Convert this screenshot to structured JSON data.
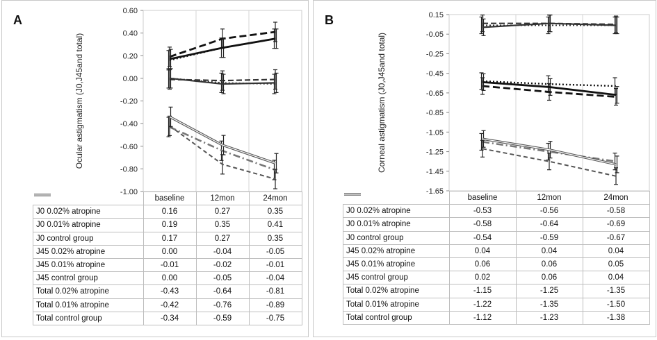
{
  "chart_data": [
    {
      "panel": "A",
      "type": "line",
      "ylabel": "Ocular astigmatism (J0,J45and total)",
      "categories": [
        "baseline",
        "12mon",
        "24mon"
      ],
      "ylim": [
        -1.0,
        0.6
      ],
      "yticks": [
        "0.60",
        "0.40",
        "0.20",
        "0.00",
        "-0.20",
        "-0.40",
        "-0.60",
        "-0.80",
        "-1.00"
      ],
      "yticks_values": [
        0.6,
        0.4,
        0.2,
        0.0,
        -0.2,
        -0.4,
        -0.6,
        -0.8,
        -1.0
      ],
      "series": [
        {
          "name": "J0 0.02% atropine",
          "style": "dotted-black",
          "values": [
            0.16,
            0.27,
            0.35
          ],
          "labels": [
            "0.16",
            "0.27",
            "0.35"
          ]
        },
        {
          "name": "J0 0.01% atropine",
          "style": "dashed-black",
          "values": [
            0.19,
            0.35,
            0.41
          ],
          "labels": [
            "0.19",
            "0.35",
            "0.41"
          ]
        },
        {
          "name": "J0 control group",
          "style": "solid-black",
          "values": [
            0.17,
            0.27,
            0.35
          ],
          "labels": [
            "0.17",
            "0.27",
            "0.35"
          ]
        },
        {
          "name": "J45 0.02% atropine",
          "style": "dotted-dark",
          "values": [
            0.0,
            -0.04,
            -0.05
          ],
          "labels": [
            "0.00",
            "-0.04",
            "-0.05"
          ]
        },
        {
          "name": "J45 0.01% atropine",
          "style": "dashed-dark",
          "values": [
            -0.01,
            -0.02,
            -0.01
          ],
          "labels": [
            "-0.01",
            "-0.02",
            "-0.01"
          ]
        },
        {
          "name": "J45 control group",
          "style": "solid-dark",
          "values": [
            0.0,
            -0.05,
            -0.04
          ],
          "labels": [
            "0.00",
            "-0.05",
            "-0.04"
          ]
        },
        {
          "name": "Total 0.02% atropine",
          "style": "gray-dashdot",
          "values": [
            -0.43,
            -0.64,
            -0.81
          ],
          "labels": [
            "-0.43",
            "-0.64",
            "-0.81"
          ]
        },
        {
          "name": "Total 0.01% atropine",
          "style": "gray-dashed",
          "values": [
            -0.42,
            -0.76,
            -0.89
          ],
          "labels": [
            "-0.42",
            "-0.76",
            "-0.89"
          ]
        },
        {
          "name": "Total control group",
          "style": "double-gray",
          "values": [
            -0.34,
            -0.59,
            -0.75
          ],
          "labels": [
            "-0.34",
            "-0.59",
            "-0.75"
          ]
        }
      ]
    },
    {
      "panel": "B",
      "type": "line",
      "ylabel": "Corneal astigmatism (J0,J45and total)",
      "categories": [
        "baseline",
        "12mon",
        "24mon"
      ],
      "ylim": [
        -1.65,
        0.15
      ],
      "yticks": [
        "0.15",
        "-0.05",
        "-0.25",
        "-0.45",
        "-0.65",
        "-0.85",
        "-1.05",
        "-1.25",
        "-1.45",
        "-1.65"
      ],
      "yticks_values": [
        0.15,
        -0.05,
        -0.25,
        -0.45,
        -0.65,
        -0.85,
        -1.05,
        -1.25,
        -1.45,
        -1.65
      ],
      "series": [
        {
          "name": "J0 0.02% atropine",
          "style": "dotted-black",
          "values": [
            -0.53,
            -0.56,
            -0.58
          ],
          "labels": [
            "-0.53",
            "-0.56",
            "-0.58"
          ]
        },
        {
          "name": "J0 0.01% atropine",
          "style": "dashed-black",
          "values": [
            -0.58,
            -0.64,
            -0.69
          ],
          "labels": [
            "-0.58",
            "-0.64",
            "-0.69"
          ]
        },
        {
          "name": "J0 control group",
          "style": "solid-black",
          "values": [
            -0.54,
            -0.59,
            -0.67
          ],
          "labels": [
            "-0.54",
            "-0.59",
            "-0.67"
          ]
        },
        {
          "name": "J45 0.02% atropine",
          "style": "dotted-dark",
          "values": [
            0.04,
            0.04,
            0.04
          ],
          "labels": [
            "0.04",
            "0.04",
            "0.04"
          ]
        },
        {
          "name": "J45 0.01% atropine",
          "style": "dashed-dark",
          "values": [
            0.06,
            0.06,
            0.05
          ],
          "labels": [
            "0.06",
            "0.06",
            "0.05"
          ]
        },
        {
          "name": "J45 control group",
          "style": "solid-dark",
          "values": [
            0.02,
            0.06,
            0.04
          ],
          "labels": [
            "0.02",
            "0.06",
            "0.04"
          ]
        },
        {
          "name": "Total 0.02% atropine",
          "style": "gray-dashdot",
          "values": [
            -1.15,
            -1.25,
            -1.35
          ],
          "labels": [
            "-1.15",
            "-1.25",
            "-1.35"
          ]
        },
        {
          "name": "Total 0.01% atropine",
          "style": "gray-dashed",
          "values": [
            -1.22,
            -1.35,
            -1.5
          ],
          "labels": [
            "-1.22",
            "-1.35",
            "-1.50"
          ]
        },
        {
          "name": "Total control group",
          "style": "double-gray",
          "values": [
            -1.12,
            -1.23,
            -1.38
          ],
          "labels": [
            "-1.12",
            "-1.23",
            "-1.38"
          ]
        }
      ]
    }
  ],
  "panels": {
    "a_label": "A",
    "b_label": "B"
  }
}
